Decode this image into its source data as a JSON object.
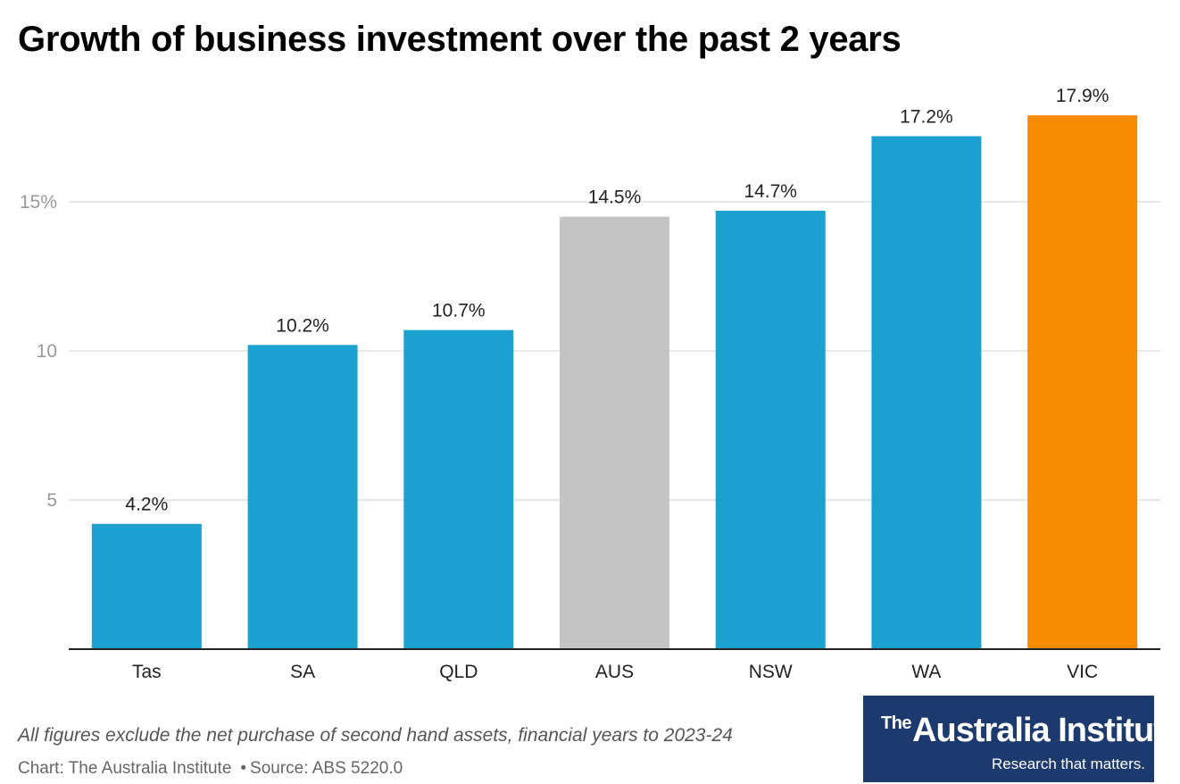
{
  "title": "Growth of business investment over the past 2 years",
  "notes": "All figures exclude the net purchase of second hand assets, financial years to 2023-24",
  "credit": {
    "chart": "Chart: The Australia Institute",
    "separator": "•",
    "source": "Source: ABS 5220.0"
  },
  "logo": {
    "prefix": "The",
    "name": "Australia Institute",
    "tagline": "Research that matters."
  },
  "colors": {
    "state": "#1ba1cf",
    "national": "#c4c4c4",
    "highlight": "#f78b00",
    "grid": "#e2e2e2",
    "axis": "#222222",
    "tick_text": "#999999"
  },
  "chart_data": {
    "type": "bar",
    "categories": [
      "Tas",
      "SA",
      "QLD",
      "AUS",
      "NSW",
      "WA",
      "VIC"
    ],
    "values": [
      4.2,
      10.2,
      10.7,
      14.5,
      14.7,
      17.2,
      17.9
    ],
    "value_labels": [
      "4.2%",
      "10.2%",
      "10.7%",
      "14.5%",
      "14.7%",
      "17.2%",
      "17.9%"
    ],
    "bar_colors": [
      "state",
      "state",
      "state",
      "national",
      "state",
      "state",
      "highlight"
    ],
    "y_ticks": [
      5,
      10,
      15
    ],
    "y_tick_labels": [
      "5",
      "10",
      "15%"
    ],
    "ylim": [
      0,
      18.2
    ],
    "grid": true,
    "xlabel": "",
    "ylabel": ""
  }
}
